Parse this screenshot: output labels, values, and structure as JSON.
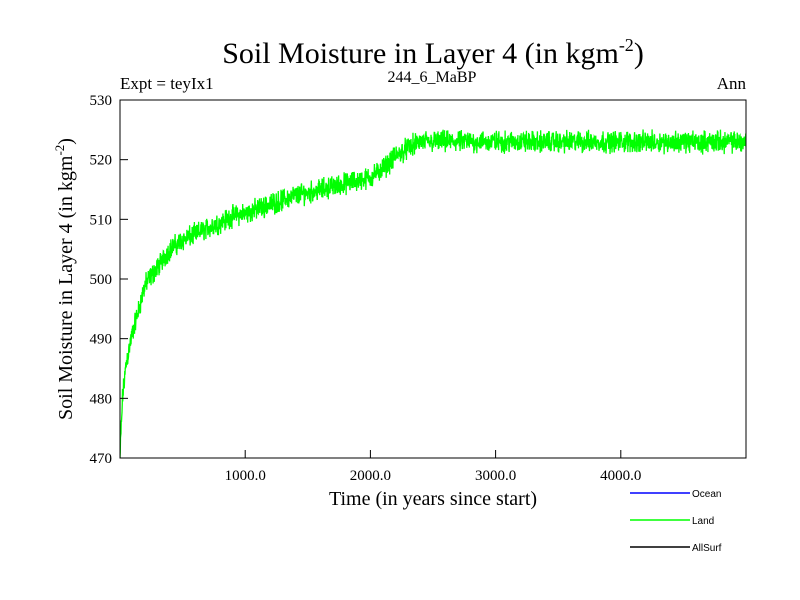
{
  "chart_data": {
    "type": "line",
    "title_main": "Soil Moisture in Layer 4 (in kgm",
    "title_sup": "-2",
    "title_close": ")",
    "subtitle_left": "Expt = teyIx1",
    "subtitle_center": "244_6_MaBP",
    "subtitle_right": "Ann",
    "xlabel": "Time (in years since start)",
    "ylabel_main": "Soil Moisture in Layer 4 (in kgm",
    "ylabel_sup": "-2",
    "ylabel_close": ")",
    "xlim": [
      0,
      5000
    ],
    "ylim": [
      470,
      530
    ],
    "x_ticks": [
      1000,
      2000,
      3000,
      4000
    ],
    "x_tick_labels": [
      "1000.0",
      "2000.0",
      "3000.0",
      "4000.0"
    ],
    "y_ticks": [
      470,
      480,
      490,
      500,
      510,
      520,
      530
    ],
    "y_tick_labels": [
      "470",
      "480",
      "490",
      "500",
      "510",
      "520",
      "530"
    ],
    "legend": [
      {
        "name": "Ocean",
        "color": "#0000ff"
      },
      {
        "name": "Land",
        "color": "#00ff00"
      },
      {
        "name": "AllSurf",
        "color": "#000000"
      }
    ],
    "series": [
      {
        "name": "Land",
        "color": "#00ff00",
        "x": [
          0,
          20,
          50,
          100,
          150,
          200,
          300,
          400,
          500,
          600,
          700,
          800,
          900,
          1000,
          1200,
          1400,
          1600,
          1800,
          1900,
          2000,
          2100,
          2200,
          2300,
          2400,
          2600,
          2800,
          3000,
          3200,
          3500,
          3800,
          4000,
          4200,
          4500,
          4800,
          5000
        ],
        "values": [
          470,
          480,
          486,
          491,
          495,
          499,
          502,
          505,
          506.5,
          507.5,
          508.5,
          509.5,
          510.5,
          511,
          512.5,
          514,
          515,
          516,
          516.5,
          517,
          518.5,
          520.5,
          522,
          523,
          523,
          523,
          523,
          523,
          523,
          523,
          523,
          523,
          523,
          523,
          523
        ],
        "noise_amplitude": 2.2
      }
    ]
  }
}
